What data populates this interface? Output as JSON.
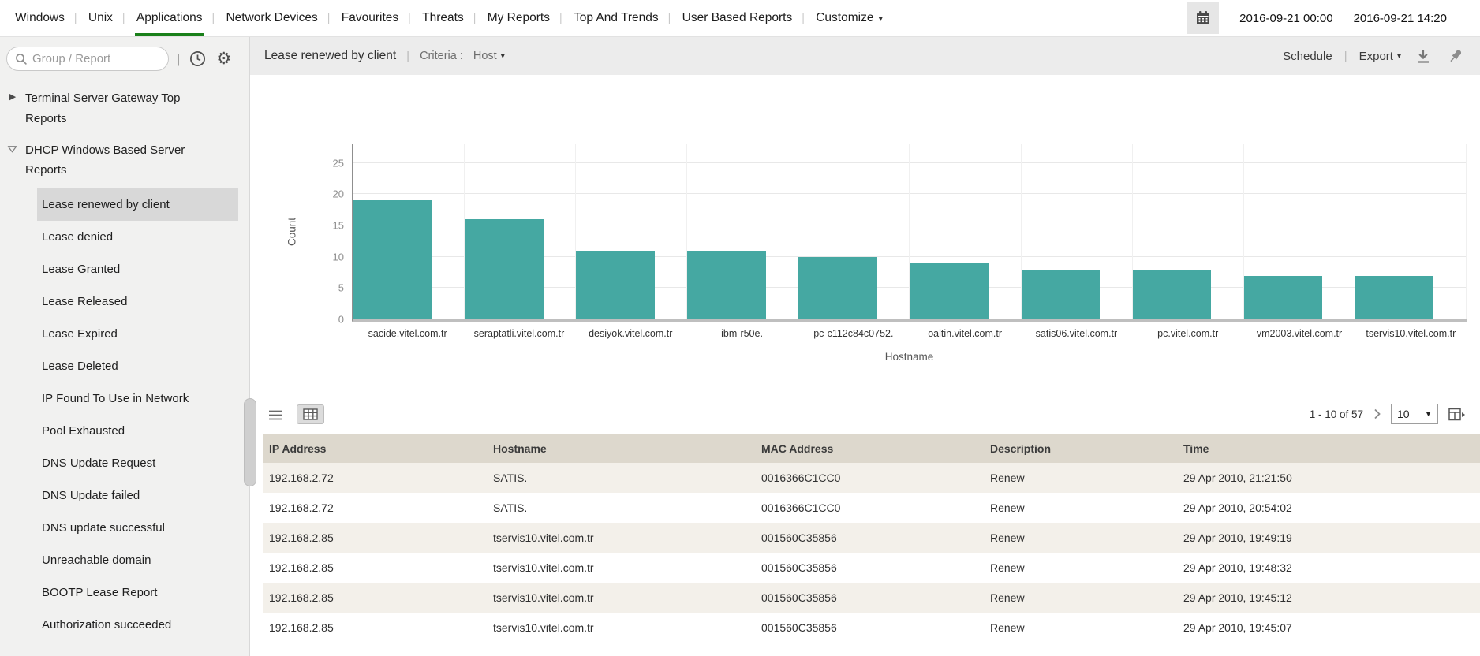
{
  "colors": {
    "accent_green": "#1a801a",
    "bar_teal": "#45a8a2",
    "table_header_bg": "#ddd8cd"
  },
  "topnav": {
    "items": [
      {
        "label": "Windows",
        "active": false,
        "dropdown": false
      },
      {
        "label": "Unix",
        "active": false,
        "dropdown": false
      },
      {
        "label": "Applications",
        "active": true,
        "dropdown": false
      },
      {
        "label": "Network Devices",
        "active": false,
        "dropdown": false
      },
      {
        "label": "Favourites",
        "active": false,
        "dropdown": false
      },
      {
        "label": "Threats",
        "active": false,
        "dropdown": false
      },
      {
        "label": "My Reports",
        "active": false,
        "dropdown": false
      },
      {
        "label": "Top And Trends",
        "active": false,
        "dropdown": false
      },
      {
        "label": "User Based Reports",
        "active": false,
        "dropdown": false
      },
      {
        "label": "Customize",
        "active": false,
        "dropdown": true
      }
    ],
    "date_from": "2016-09-21 00:00",
    "date_to": "2016-09-21 14:20"
  },
  "sidebar": {
    "search_placeholder": "Group / Report",
    "groups": [
      {
        "label": "Terminal Server Gateway Top Reports",
        "expanded": false
      },
      {
        "label": "DHCP Windows Based Server Reports",
        "expanded": true
      }
    ],
    "items": [
      {
        "label": "Lease renewed by client",
        "selected": true
      },
      {
        "label": "Lease denied",
        "selected": false
      },
      {
        "label": "Lease Granted",
        "selected": false
      },
      {
        "label": "Lease Released",
        "selected": false
      },
      {
        "label": "Lease Expired",
        "selected": false
      },
      {
        "label": "Lease Deleted",
        "selected": false
      },
      {
        "label": "IP Found To Use in Network",
        "selected": false
      },
      {
        "label": "Pool Exhausted",
        "selected": false
      },
      {
        "label": "DNS Update Request",
        "selected": false
      },
      {
        "label": "DNS Update failed",
        "selected": false
      },
      {
        "label": "DNS update successful",
        "selected": false
      },
      {
        "label": "Unreachable domain",
        "selected": false
      },
      {
        "label": "BOOTP Lease Report",
        "selected": false
      },
      {
        "label": "Authorization succeeded",
        "selected": false
      }
    ]
  },
  "report_header": {
    "title": "Lease renewed by client",
    "criteria_label": "Criteria :",
    "criteria_value": "Host",
    "schedule_label": "Schedule",
    "export_label": "Export"
  },
  "chart_data": {
    "type": "bar",
    "title": "",
    "categories": [
      "sacide.vitel.com.tr",
      "seraptatli.vitel.com.tr",
      "desiyok.vitel.com.tr",
      "ibm-r50e.",
      "pc-c112c84c0752.",
      "oaltin.vitel.com.tr",
      "satis06.vitel.com.tr",
      "pc.vitel.com.tr",
      "vm2003.vitel.com.tr",
      "tservis10.vitel.com.tr"
    ],
    "values": [
      19,
      16,
      11,
      11,
      10,
      9,
      8,
      8,
      7,
      7
    ],
    "xlabel": "Hostname",
    "ylabel": "Count",
    "ylim": [
      0,
      28
    ],
    "yticks": [
      0,
      5,
      10,
      15,
      20,
      25
    ],
    "bar_color": "#45a8a2",
    "grid": true,
    "legend": false
  },
  "pagination": {
    "range": "1 - 10 of 57",
    "page_size": "10"
  },
  "table": {
    "columns": [
      "IP Address",
      "Hostname",
      "MAC Address",
      "Description",
      "Time"
    ],
    "rows": [
      {
        "ip": "192.168.2.72",
        "hostname": "SATIS.",
        "mac": "0016366C1CC0",
        "description": "Renew",
        "time": "29 Apr 2010, 21:21:50"
      },
      {
        "ip": "192.168.2.72",
        "hostname": "SATIS.",
        "mac": "0016366C1CC0",
        "description": "Renew",
        "time": "29 Apr 2010, 20:54:02"
      },
      {
        "ip": "192.168.2.85",
        "hostname": "tservis10.vitel.com.tr",
        "mac": "001560C35856",
        "description": "Renew",
        "time": "29 Apr 2010, 19:49:19"
      },
      {
        "ip": "192.168.2.85",
        "hostname": "tservis10.vitel.com.tr",
        "mac": "001560C35856",
        "description": "Renew",
        "time": "29 Apr 2010, 19:48:32"
      },
      {
        "ip": "192.168.2.85",
        "hostname": "tservis10.vitel.com.tr",
        "mac": "001560C35856",
        "description": "Renew",
        "time": "29 Apr 2010, 19:45:12"
      },
      {
        "ip": "192.168.2.85",
        "hostname": "tservis10.vitel.com.tr",
        "mac": "001560C35856",
        "description": "Renew",
        "time": "29 Apr 2010, 19:45:07"
      }
    ]
  },
  "icons": {
    "calendar": "calendar-grid",
    "search": "magnifier",
    "clock": "clock-face",
    "gear": "⚙",
    "caret_down": "▾",
    "tree_collapsed": "▸",
    "tree_expanded": "chevron-down-outline",
    "download": "arrow-down-over-bar",
    "pin": "pushpin",
    "list_view": "three-lines",
    "table_view": "grid",
    "chevron_right": "›",
    "column_settings": "grid-with-arrow"
  }
}
